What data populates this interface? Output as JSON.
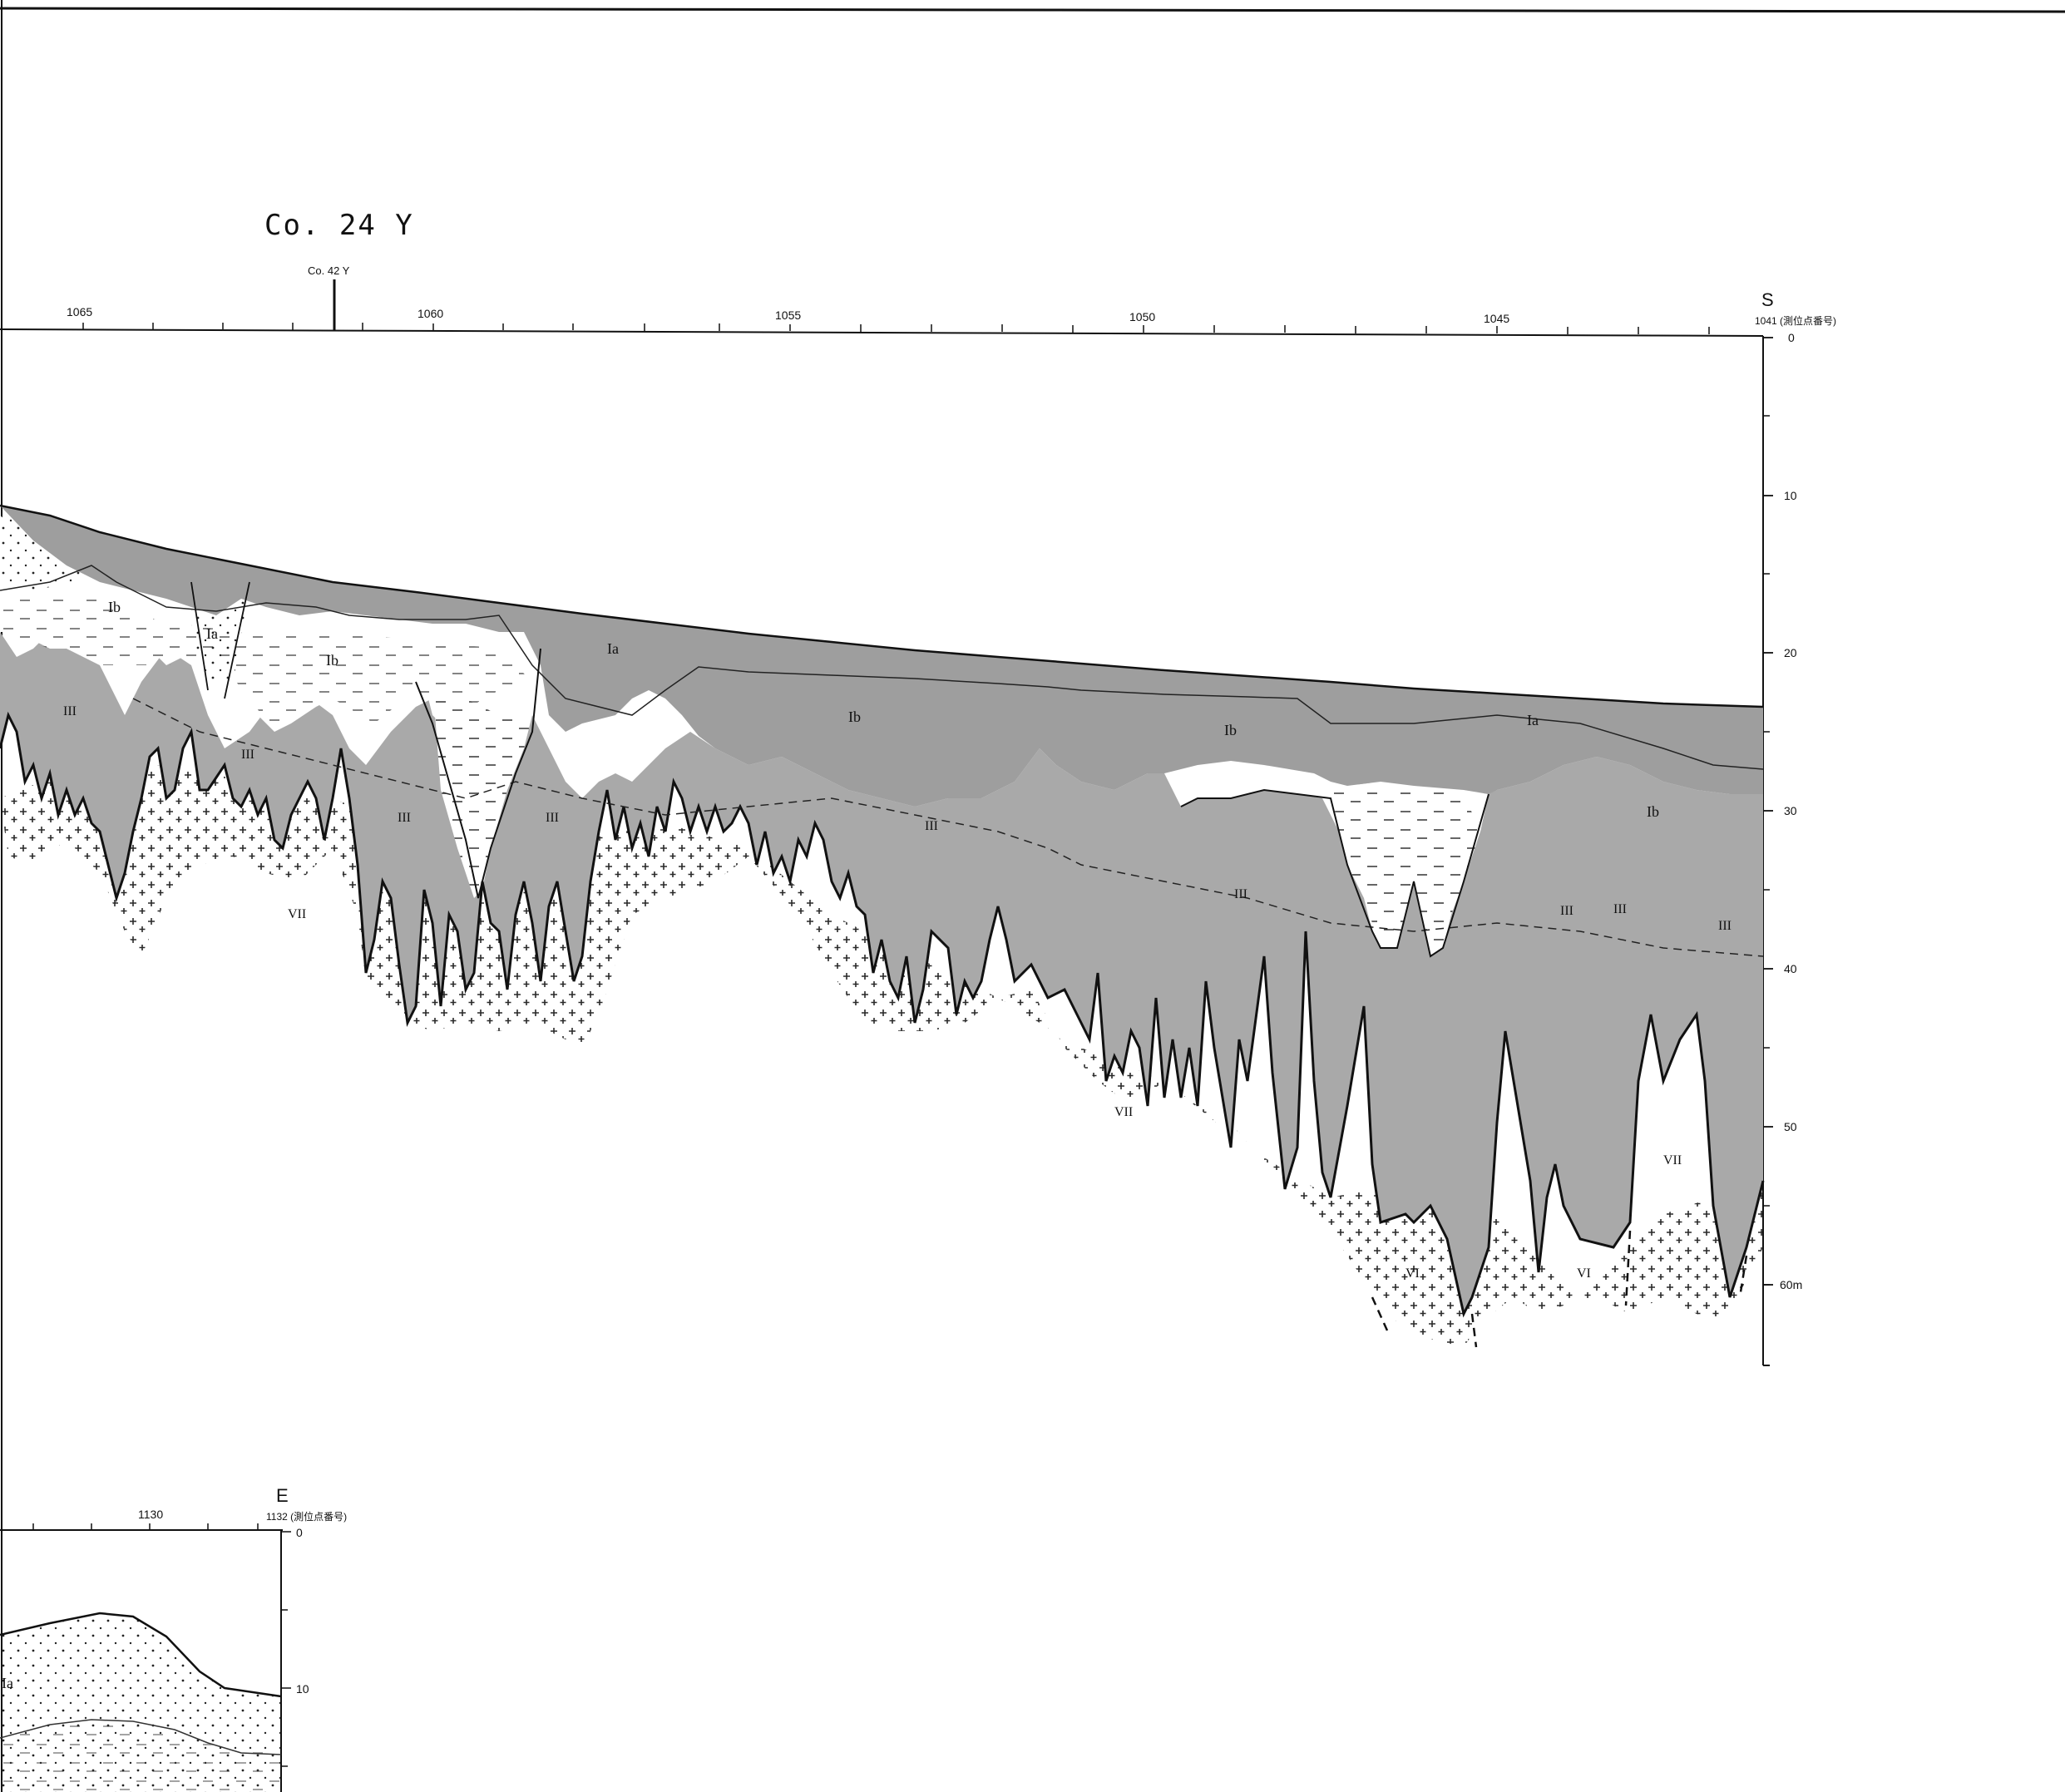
{
  "title": "Co. 24 Y",
  "intersection_label": "Co. 42 Y",
  "end_direction": "S",
  "station_ticks": [
    "1065",
    "1060",
    "1055",
    "1050",
    "1045"
  ],
  "end_station": "1041 (測位点番号)",
  "depth_ticks": [
    "0",
    "10",
    "20",
    "30",
    "40",
    "50",
    "60m"
  ],
  "unit_labels_upper": [
    "Ib",
    "Ia",
    "Ib",
    "Ia",
    "Ib",
    "Ib",
    "Ia",
    "Ib",
    "III",
    "III",
    "III",
    "III",
    "III",
    "III",
    "III",
    "III",
    "III",
    "VII",
    "VII",
    "VII",
    "VI",
    "VI"
  ],
  "inset": {
    "end_direction": "E",
    "station_tick": "1130",
    "end_station": "1132 (測位点番号)",
    "depth_ticks": [
      "0",
      "10"
    ],
    "unit_label": "Ia"
  },
  "colors": {
    "sediment_fill": "#a9a9a9",
    "sediment_dark": "#9a9a9a",
    "line": "#111111",
    "paper": "#ffffff"
  }
}
